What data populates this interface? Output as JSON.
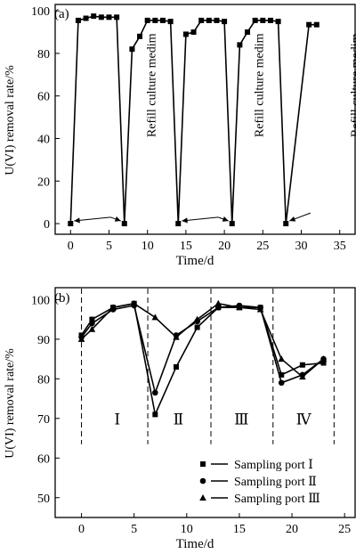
{
  "chart_data": [
    {
      "type": "line",
      "panel_label": "(a)",
      "xlabel": "Time/d",
      "ylabel": "U(VI) removal rate/%",
      "xlim": [
        -2,
        37
      ],
      "ylim": [
        -5,
        103
      ],
      "xticks": [
        0,
        5,
        10,
        15,
        20,
        25,
        30,
        35
      ],
      "yticks": [
        0,
        20,
        40,
        60,
        80,
        100
      ],
      "marker": "square",
      "x": [
        0,
        1,
        2,
        3,
        4,
        5,
        6,
        7,
        8,
        9,
        10,
        11,
        12,
        13,
        14,
        15,
        16,
        17,
        18,
        19,
        20,
        21,
        22,
        23,
        24,
        25,
        26,
        27,
        28,
        31,
        32
      ],
      "values": [
        0,
        95.5,
        96.5,
        97.5,
        97,
        97,
        97,
        0,
        82,
        88,
        95.5,
        95.5,
        95.5,
        95,
        0,
        89,
        90,
        95.5,
        95.5,
        95.5,
        95,
        0,
        84,
        90,
        95.5,
        95.5,
        95.5,
        95,
        0,
        93.5,
        93.5
      ],
      "annotations": [
        {
          "text": "Refill culture medim",
          "targets": [
            [
              0,
              0
            ],
            [
              7,
              0
            ]
          ]
        },
        {
          "text": "Refill culture medim",
          "targets": [
            [
              14,
              0
            ],
            [
              21,
              0
            ]
          ]
        },
        {
          "text": "Refill culture medim",
          "targets": [
            [
              28,
              0
            ]
          ]
        }
      ]
    },
    {
      "type": "line",
      "panel_label": "(b)",
      "xlabel": "Time/d",
      "ylabel": "U(VI) removal rate/%",
      "xlim": [
        -2.5,
        26
      ],
      "ylim": [
        45,
        103
      ],
      "xticks": [
        0,
        5,
        10,
        15,
        20,
        25
      ],
      "yticks": [
        50,
        60,
        70,
        80,
        90,
        100
      ],
      "phase_boundaries": [
        6.3,
        12.3,
        18.2,
        24
      ],
      "phase_labels": [
        {
          "text": "Ⅰ",
          "x": 3.4
        },
        {
          "text": "Ⅱ",
          "x": 9.2
        },
        {
          "text": "Ⅲ",
          "x": 15.2
        },
        {
          "text": "Ⅳ",
          "x": 21.1
        }
      ],
      "x": [
        0,
        1,
        3,
        5,
        7,
        9,
        11,
        13,
        15,
        17,
        19,
        21,
        23
      ],
      "series": [
        {
          "name": "Sampling port Ⅰ",
          "marker": "square",
          "values": [
            91,
            95,
            98,
            99,
            71,
            83,
            93,
            98,
            98,
            98,
            81,
            83.5,
            84
          ]
        },
        {
          "name": "Sampling port Ⅱ",
          "marker": "circle",
          "values": [
            90.5,
            94,
            97.5,
            98.5,
            76.5,
            91,
            94.5,
            98,
            98.5,
            98,
            79,
            81,
            85
          ]
        },
        {
          "name": "Sampling port Ⅲ",
          "marker": "triangle",
          "values": [
            90,
            92.5,
            98,
            99,
            95.5,
            90.5,
            95,
            99,
            98,
            97.5,
            85,
            80.5,
            85
          ]
        }
      ],
      "legend_position": "bottom-right"
    }
  ]
}
